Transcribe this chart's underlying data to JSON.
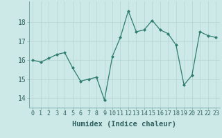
{
  "x": [
    0,
    1,
    2,
    3,
    4,
    5,
    6,
    7,
    8,
    9,
    10,
    11,
    12,
    13,
    14,
    15,
    16,
    17,
    18,
    19,
    20,
    21,
    22,
    23
  ],
  "y": [
    16.0,
    15.9,
    16.1,
    16.3,
    16.4,
    15.6,
    14.9,
    15.0,
    15.1,
    13.9,
    16.2,
    17.2,
    18.6,
    17.5,
    17.6,
    18.1,
    17.6,
    17.4,
    16.8,
    14.7,
    15.2,
    17.5,
    17.3,
    17.2
  ],
  "line_color": "#2e7d6e",
  "marker": "D",
  "markersize": 2.0,
  "linewidth": 0.9,
  "bg_color": "#cce9e7",
  "grid_color": "#b8d8d6",
  "xlabel": "Humidex (Indice chaleur)",
  "xlabel_fontsize": 7.5,
  "ylabel_ticks": [
    14,
    15,
    16,
    17,
    18
  ],
  "xlim": [
    -0.5,
    23.5
  ],
  "ylim": [
    13.5,
    19.1
  ],
  "ytick_fontsize": 7,
  "xtick_fontsize": 6
}
